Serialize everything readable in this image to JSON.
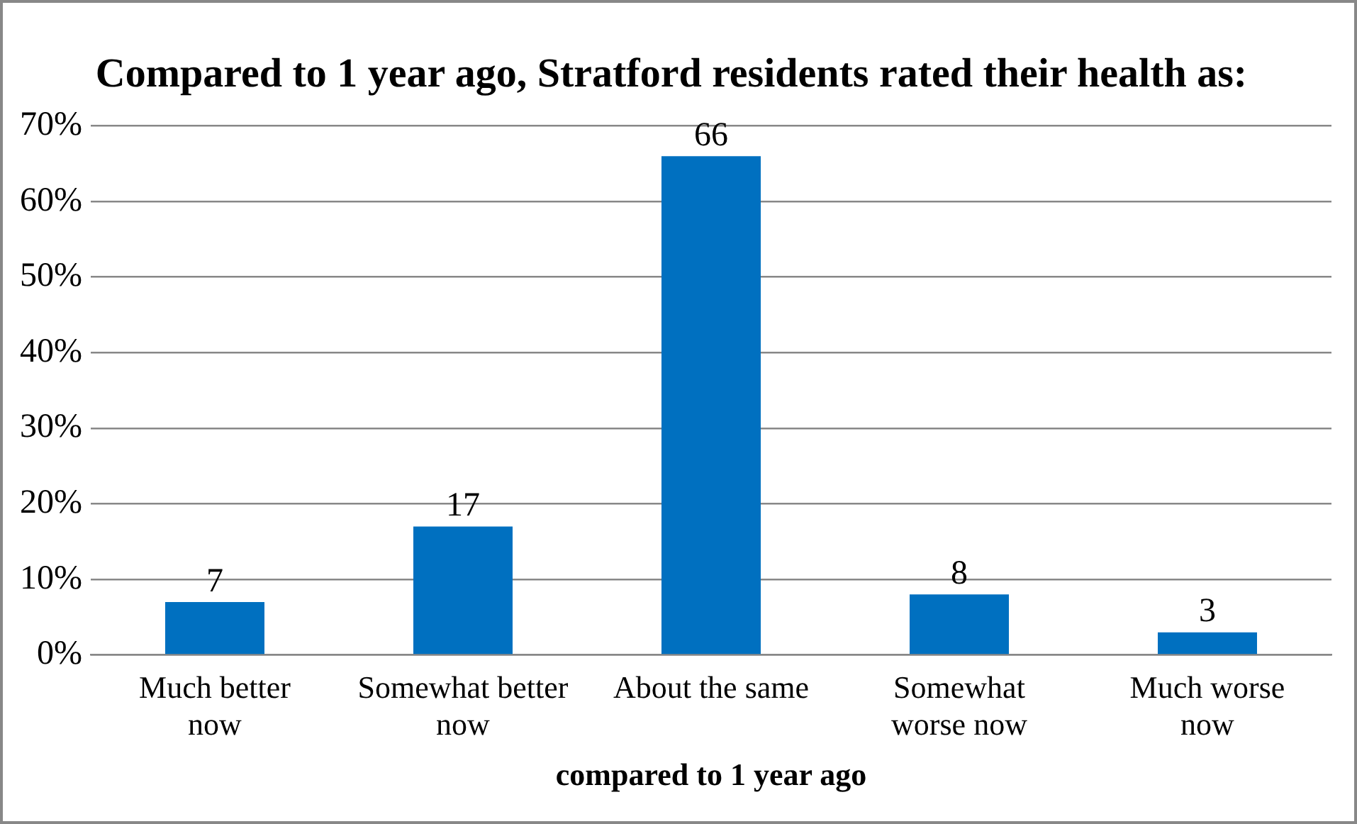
{
  "chart_data": {
    "type": "bar",
    "title": "Compared to 1 year ago, Stratford residents rated their health as:",
    "xlabel": "compared to 1 year ago",
    "categories": [
      "Much better now",
      "Somewhat better now",
      "About the same",
      "Somewhat worse now",
      "Much worse now"
    ],
    "values": [
      7,
      17,
      66,
      8,
      3
    ],
    "color": "#0070c0",
    "data_labels": true,
    "ylim": [
      0,
      70
    ],
    "yticks": [
      {
        "value": 0,
        "label": "0%"
      },
      {
        "value": 10,
        "label": "10%"
      },
      {
        "value": 20,
        "label": "20%"
      },
      {
        "value": 30,
        "label": "30%"
      },
      {
        "value": 40,
        "label": "40%"
      },
      {
        "value": 50,
        "label": "50%"
      },
      {
        "value": 60,
        "label": "60%"
      },
      {
        "value": 70,
        "label": "70%"
      }
    ],
    "grid": "y",
    "legend": false
  }
}
